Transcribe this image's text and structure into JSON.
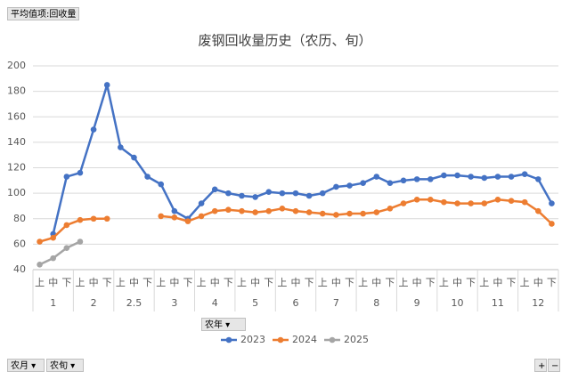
{
  "chart_data": {
    "type": "line",
    "title": "废钢回收量历史（农历、旬）",
    "categories": [
      "上",
      "中",
      "下",
      "上",
      "中",
      "下",
      "上",
      "中",
      "下",
      "上",
      "中",
      "下",
      "上",
      "中",
      "下",
      "上",
      "中",
      "下",
      "上",
      "中",
      "下",
      "上",
      "中",
      "下",
      "上",
      "中",
      "下",
      "上",
      "中",
      "下",
      "上",
      "中",
      "下",
      "上",
      "中",
      "下",
      "上",
      "中",
      "下"
    ],
    "groups": [
      "1",
      "2",
      "2.5",
      "3",
      "4",
      "5",
      "6",
      "7",
      "8",
      "9",
      "10",
      "11",
      "12"
    ],
    "ylim": [
      40,
      200
    ],
    "yticks": [
      40,
      60,
      80,
      100,
      120,
      140,
      160,
      180,
      200
    ],
    "grid": true,
    "series": [
      {
        "name": "2023",
        "color": "#4472c4",
        "values": [
          null,
          68,
          113,
          116,
          150,
          185,
          136,
          128,
          113,
          107,
          86,
          80,
          92,
          103,
          100,
          98,
          97,
          101,
          100,
          100,
          98,
          100,
          105,
          106,
          108,
          113,
          108,
          110,
          111,
          111,
          114,
          114,
          113,
          112,
          113,
          113,
          115,
          111,
          92
        ]
      },
      {
        "name": "2024",
        "color": "#ed7d31",
        "values": [
          62,
          65,
          75,
          79,
          80,
          80,
          null,
          null,
          null,
          82,
          81,
          78,
          82,
          86,
          87,
          86,
          85,
          86,
          88,
          86,
          85,
          84,
          83,
          84,
          84,
          85,
          88,
          92,
          95,
          95,
          93,
          92,
          92,
          92,
          95,
          94,
          93,
          86,
          76
        ]
      },
      {
        "name": "2025",
        "color": "#a5a5a5",
        "values": [
          44,
          49,
          57,
          62,
          null,
          null,
          null,
          null,
          null,
          null,
          null,
          null,
          null,
          null,
          null,
          null,
          null,
          null,
          null,
          null,
          null,
          null,
          null,
          null,
          null,
          null,
          null,
          null,
          null,
          null,
          null,
          null,
          null,
          null,
          null,
          null,
          null,
          null,
          null
        ]
      }
    ]
  },
  "pivot_buttons": {
    "value_field": "平均值项:回收量",
    "legend_field": "农年",
    "axis_fields": [
      "农月",
      "农旬"
    ],
    "zoom": [
      "+",
      "−"
    ]
  }
}
